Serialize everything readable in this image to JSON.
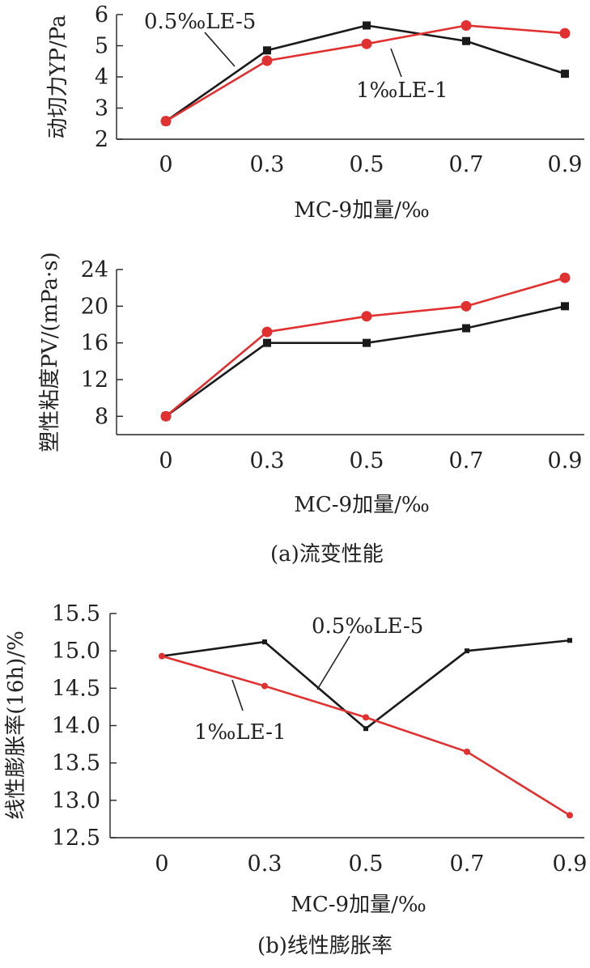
{
  "chart_data": [
    {
      "type": "line",
      "ylabel": "动切力YP/Pa",
      "xlabel": "MC-9加量/‰",
      "categories": [
        "0",
        "0.3",
        "0.5",
        "0.7",
        "0.9"
      ],
      "x": [
        0,
        0.3,
        0.5,
        0.7,
        0.9
      ],
      "ylim": [
        2,
        6
      ],
      "yticks": [
        "2",
        "3",
        "4",
        "5",
        "6"
      ],
      "series": [
        {
          "name": "0.5‰LE-5",
          "color": "#1a1a1a",
          "marker": "square",
          "values": [
            2.58,
            4.85,
            5.65,
            5.15,
            4.1
          ]
        },
        {
          "name": "1‰LE-1",
          "color": "#e03030",
          "marker": "circle",
          "values": [
            2.58,
            4.52,
            5.06,
            5.65,
            5.4
          ]
        }
      ]
    },
    {
      "type": "line",
      "ylabel": "塑性粘度PV/(mPa·s)",
      "xlabel": "MC-9加量/‰",
      "categories": [
        "0",
        "0.3",
        "0.5",
        "0.7",
        "0.9"
      ],
      "x": [
        0,
        0.3,
        0.5,
        0.7,
        0.9
      ],
      "ylim": [
        6,
        24
      ],
      "yticks": [
        "8",
        "12",
        "16",
        "20",
        "24"
      ],
      "series": [
        {
          "name": "0.5‰LE-5",
          "color": "#1a1a1a",
          "marker": "square",
          "values": [
            8,
            16,
            16,
            17.6,
            20
          ]
        },
        {
          "name": "1‰LE-1",
          "color": "#e03030",
          "marker": "circle",
          "values": [
            8,
            17.2,
            18.9,
            20,
            23.1
          ]
        }
      ]
    },
    {
      "type": "line",
      "ylabel": "线性膨胀率(16h)/%",
      "xlabel": "MC-9加量/‰",
      "categories": [
        "0",
        "0.3",
        "0.5",
        "0.7",
        "0.9"
      ],
      "x": [
        0,
        0.3,
        0.5,
        0.7,
        0.9
      ],
      "ylim": [
        12.5,
        15.5
      ],
      "yticks": [
        "12.5",
        "13.0",
        "13.5",
        "14.0",
        "14.5",
        "15.0",
        "15.5"
      ],
      "series": [
        {
          "name": "0.5‰LE-5",
          "color": "#1a1a1a",
          "marker": "small-square",
          "values": [
            14.93,
            15.12,
            13.96,
            15.0,
            15.14
          ]
        },
        {
          "name": "1‰LE-1",
          "color": "#e03030",
          "marker": "small-circle",
          "values": [
            14.93,
            14.53,
            14.11,
            13.65,
            12.8
          ]
        }
      ]
    }
  ],
  "captions": {
    "a": "(a)流变性能",
    "b": "(b)线性膨胀率"
  },
  "annotations": {
    "c1_black": "0.5‰LE-5",
    "c1_red": "1‰LE-1",
    "c3_black": "0.5‰LE-5",
    "c3_red": "1‰LE-1"
  }
}
